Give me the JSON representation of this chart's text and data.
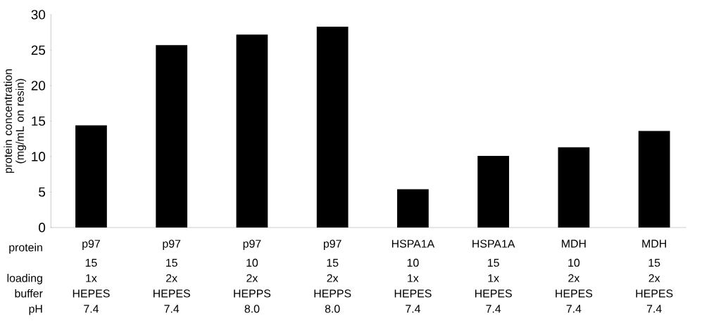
{
  "chart_data": {
    "type": "bar",
    "ylabel": "protein concentration (mg/mL on resin)",
    "categories": [
      "p97",
      "p97",
      "p97",
      "p97",
      "HSPA1A",
      "HSPA1A",
      "MDH",
      "MDH"
    ],
    "values": [
      14.4,
      25.7,
      27.2,
      28.3,
      5.4,
      10.1,
      11.3,
      13.6
    ],
    "color": "#000000",
    "ylim": [
      0,
      30
    ],
    "yticks": [
      0,
      5,
      10,
      15,
      20,
      25,
      30
    ],
    "grid": false,
    "annotations": [
      "protein",
      "loading",
      "buffer",
      "pH",
      "15",
      "15",
      "10",
      "15",
      "10",
      "15",
      "10",
      "15",
      "1x",
      "2x",
      "2x",
      "2x",
      "1x",
      "1x",
      "2x",
      "2x",
      "HEPES",
      "HEPES",
      "HEPPS",
      "HEPPS",
      "HEPES",
      "HEPES",
      "HEPES",
      "HEPES",
      "7.4",
      "7.4",
      "8.0",
      "8.0",
      "7.4",
      "7.4",
      "7.4",
      "7.4"
    ]
  }
}
